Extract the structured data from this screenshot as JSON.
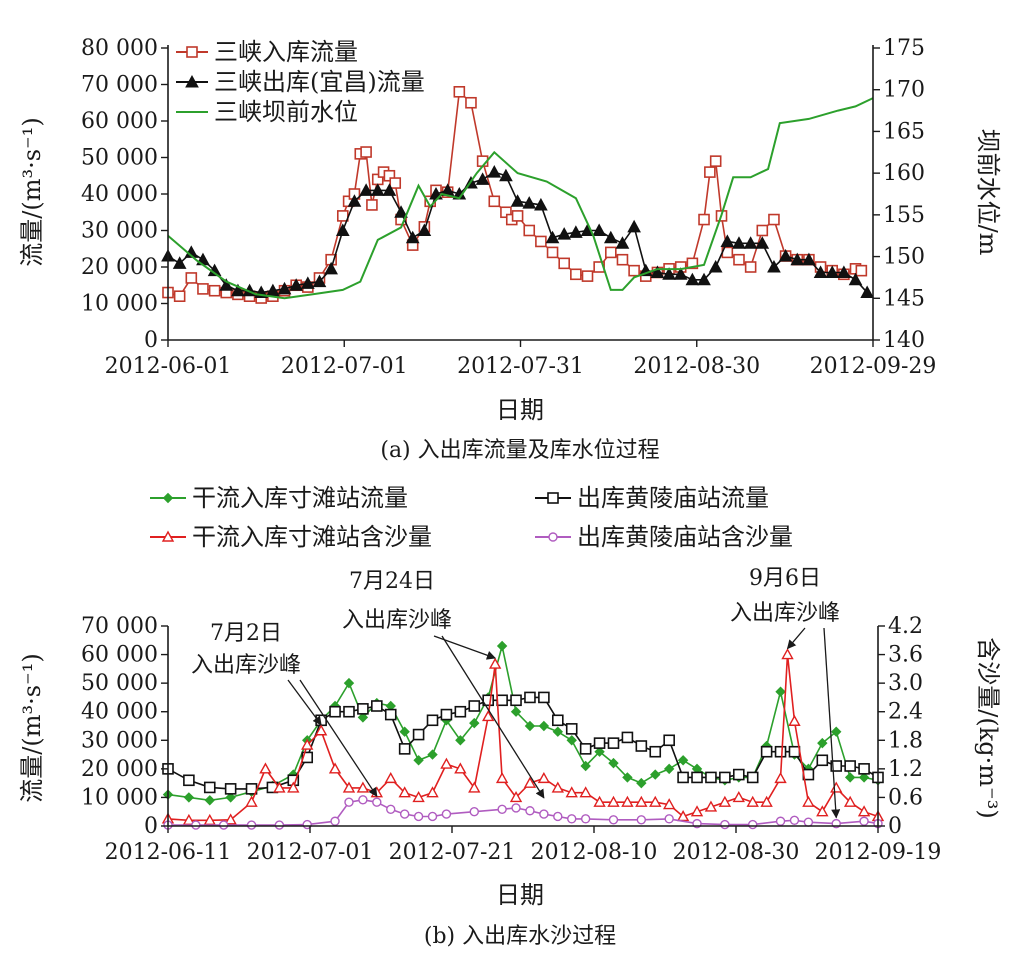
{
  "chart_data": [
    {
      "id": "a",
      "type": "line",
      "caption": "(a) 入出库流量及库水位过程",
      "xlabel": "日期",
      "ylabel": "流量/(m³·s⁻¹)",
      "ylabel_right": "坝前水位/m",
      "x_ticks": [
        "2012-06-01",
        "2012-07-01",
        "2012-07-31",
        "2012-08-30",
        "2012-09-29"
      ],
      "y_ticks": [
        "0",
        "10 000",
        "20 000",
        "30 000",
        "40 000",
        "50 000",
        "60 000",
        "70 000",
        "80 000"
      ],
      "y2_ticks": [
        "140",
        "145",
        "150",
        "155",
        "160",
        "165",
        "170",
        "175"
      ],
      "xlim": [
        0,
        121
      ],
      "ylim": [
        0,
        80000
      ],
      "y2lim": [
        140,
        175
      ],
      "x_unit": "days since 2012-06-01",
      "legend_position": "top-left",
      "series": [
        {
          "name": "三峡入库流量",
          "axis": "left",
          "color": "#c0392b",
          "marker": "square-open",
          "x": [
            0,
            2,
            4,
            6,
            8,
            10,
            12,
            14,
            16,
            18,
            20,
            22,
            24,
            26,
            28,
            30,
            31,
            32,
            33,
            34,
            35,
            36,
            37,
            38,
            39,
            40,
            42,
            44,
            45,
            46,
            48,
            50,
            52,
            54,
            56,
            58,
            59,
            60,
            62,
            64,
            66,
            68,
            70,
            72,
            74,
            76,
            78,
            80,
            82,
            84,
            86,
            88,
            90,
            92,
            93,
            94,
            95,
            96,
            98,
            100,
            102,
            104,
            106,
            108,
            110,
            112,
            114,
            116,
            118,
            119
          ],
          "y": [
            13000,
            12000,
            17000,
            14000,
            13500,
            13000,
            12500,
            12000,
            11500,
            12000,
            13500,
            15000,
            14500,
            17000,
            22000,
            34000,
            38000,
            40000,
            51000,
            51500,
            37000,
            44000,
            46000,
            45000,
            43000,
            33000,
            26000,
            31000,
            38000,
            41000,
            40500,
            68000,
            65000,
            49000,
            38000,
            35000,
            33000,
            34000,
            30000,
            27000,
            24000,
            21000,
            18000,
            17500,
            20000,
            24000,
            22000,
            19000,
            17500,
            18500,
            19500,
            20000,
            21000,
            33000,
            46000,
            49000,
            34000,
            24000,
            22000,
            20000,
            30000,
            33000,
            23000,
            22000,
            22000,
            20000,
            19000,
            18000,
            19500,
            19000
          ]
        },
        {
          "name": "三峡出库(宜昌)流量",
          "axis": "left",
          "color": "#111111",
          "marker": "triangle-filled",
          "x": [
            0,
            2,
            4,
            6,
            8,
            10,
            12,
            14,
            16,
            18,
            20,
            22,
            24,
            26,
            28,
            30,
            32,
            34,
            36,
            38,
            40,
            42,
            44,
            46,
            48,
            50,
            52,
            54,
            56,
            58,
            60,
            62,
            64,
            66,
            68,
            70,
            72,
            74,
            76,
            78,
            80,
            82,
            84,
            86,
            88,
            90,
            92,
            94,
            96,
            98,
            100,
            102,
            104,
            106,
            108,
            110,
            112,
            114,
            116,
            118,
            120
          ],
          "y": [
            23000,
            21000,
            24000,
            22000,
            19000,
            15000,
            13500,
            13500,
            13000,
            13500,
            14000,
            15000,
            15500,
            16000,
            19500,
            30000,
            38000,
            41000,
            41000,
            41000,
            35000,
            28000,
            30000,
            40000,
            41000,
            40000,
            43000,
            44000,
            46000,
            45000,
            38000,
            37500,
            37000,
            28000,
            29000,
            29500,
            30000,
            30000,
            28000,
            26500,
            31000,
            19000,
            18500,
            18000,
            18000,
            16500,
            16500,
            20000,
            27000,
            26500,
            26500,
            26500,
            20000,
            23000,
            22000,
            22000,
            18500,
            18500,
            18500,
            16500,
            13000
          ]
        },
        {
          "name": "三峡坝前水位",
          "axis": "right",
          "color": "#2ca02c",
          "marker": "none",
          "x": [
            0,
            5,
            10,
            15,
            20,
            25,
            30,
            33,
            36,
            40,
            43,
            45,
            47,
            50,
            53,
            56,
            60,
            65,
            70,
            73,
            76,
            78,
            80,
            84,
            88,
            92,
            95,
            97,
            100,
            103,
            105,
            110,
            115,
            118,
            121
          ],
          "y": [
            152.5,
            149.5,
            147,
            145.5,
            145,
            145.5,
            146,
            147,
            152,
            153.5,
            158.5,
            156,
            157.5,
            157,
            160,
            162.5,
            160,
            159,
            157,
            152.5,
            146,
            146,
            147.5,
            148.5,
            148.5,
            149,
            155,
            159.5,
            159.5,
            160.5,
            166,
            166.5,
            167.5,
            168,
            169
          ]
        }
      ]
    },
    {
      "id": "b",
      "type": "line",
      "caption": "(b) 入出库水沙过程",
      "xlabel": "日期",
      "ylabel": "流量/(m³·s⁻¹)",
      "ylabel_right": "含沙量/(kg·m⁻³)",
      "x_ticks": [
        "2012-06-11",
        "2012-07-01",
        "2012-07-21",
        "2012-08-10",
        "2012-08-30",
        "2012-09-19"
      ],
      "y_ticks": [
        "0",
        "10 000",
        "20 000",
        "30 000",
        "40 000",
        "50 000",
        "60 000",
        "70 000"
      ],
      "y2_ticks": [
        "0",
        "0.6",
        "1.2",
        "1.8",
        "2.4",
        "3.0",
        "3.6",
        "4.2"
      ],
      "xlim": [
        0,
        102
      ],
      "ylim": [
        0,
        70000
      ],
      "y2lim": [
        0,
        4.2
      ],
      "x_unit": "days since 2012-06-11",
      "legend_position": "top",
      "annotations": [
        {
          "line1": "7月2日",
          "line2": "入出库沙峰"
        },
        {
          "line1": "7月24日",
          "line2": "入出库沙峰"
        },
        {
          "line1": "9月6日",
          "line2": "入出库沙峰"
        }
      ],
      "series": [
        {
          "name": "干流入库寸滩站流量",
          "axis": "left",
          "color": "#2ca02c",
          "marker": "diamond-filled",
          "x": [
            0,
            3,
            6,
            9,
            12,
            15,
            18,
            20,
            22,
            24,
            26,
            28,
            30,
            32,
            34,
            36,
            38,
            40,
            42,
            44,
            46,
            48,
            50,
            52,
            54,
            56,
            58,
            60,
            62,
            64,
            66,
            68,
            70,
            72,
            74,
            76,
            78,
            80,
            82,
            84,
            86,
            88,
            90,
            92,
            94,
            96,
            98,
            100,
            102
          ],
          "y": [
            11000,
            10000,
            9000,
            10000,
            12000,
            14000,
            18000,
            30000,
            37000,
            42000,
            50000,
            38000,
            43000,
            42000,
            33000,
            23000,
            25000,
            37000,
            30000,
            36000,
            45000,
            63000,
            40000,
            35000,
            35000,
            33000,
            30000,
            21000,
            26000,
            22000,
            17000,
            15000,
            18000,
            20000,
            23000,
            20000,
            17000,
            16000,
            17000,
            17000,
            28000,
            47000,
            25000,
            20000,
            29000,
            33000,
            17000,
            17000,
            16000
          ]
        },
        {
          "name": "出库黄陵庙站流量",
          "axis": "left",
          "color": "#111111",
          "marker": "square-open",
          "x": [
            0,
            3,
            6,
            9,
            12,
            15,
            18,
            20,
            22,
            24,
            26,
            28,
            30,
            32,
            34,
            36,
            38,
            40,
            42,
            44,
            46,
            48,
            50,
            52,
            54,
            56,
            58,
            60,
            62,
            64,
            66,
            68,
            70,
            72,
            74,
            76,
            78,
            80,
            82,
            84,
            86,
            88,
            90,
            92,
            94,
            96,
            98,
            100,
            102
          ],
          "y": [
            20000,
            16000,
            13500,
            13000,
            13000,
            13500,
            16000,
            24000,
            37000,
            40000,
            40000,
            41000,
            42000,
            39000,
            27000,
            32000,
            37000,
            39000,
            40000,
            42000,
            44000,
            44000,
            44000,
            45000,
            45000,
            37000,
            34000,
            27000,
            29000,
            29000,
            31000,
            28000,
            26000,
            30000,
            17000,
            17000,
            17000,
            17000,
            18000,
            17000,
            26000,
            26000,
            26000,
            18000,
            23000,
            21000,
            21000,
            20000,
            17000
          ]
        },
        {
          "name": "干流入库寸滩站含沙量",
          "axis": "right",
          "color": "#e02020",
          "marker": "triangle-open",
          "x": [
            0,
            3,
            6,
            9,
            12,
            14,
            16,
            18,
            20,
            22,
            24,
            26,
            28,
            30,
            32,
            34,
            36,
            38,
            40,
            42,
            44,
            46,
            47,
            48,
            50,
            52,
            54,
            56,
            58,
            60,
            62,
            64,
            66,
            68,
            70,
            72,
            74,
            76,
            78,
            80,
            82,
            84,
            86,
            88,
            89,
            90,
            92,
            94,
            96,
            98,
            100,
            102
          ],
          "y": [
            0.15,
            0.12,
            0.12,
            0.13,
            0.5,
            1.2,
            0.8,
            0.8,
            1.7,
            2.0,
            1.2,
            0.8,
            0.8,
            0.7,
            1.0,
            0.7,
            0.6,
            0.7,
            1.3,
            1.2,
            0.8,
            2.3,
            3.4,
            1.0,
            0.6,
            0.9,
            1.0,
            0.8,
            0.7,
            0.7,
            0.5,
            0.5,
            0.5,
            0.5,
            0.5,
            0.45,
            0.2,
            0.3,
            0.4,
            0.5,
            0.6,
            0.5,
            0.5,
            1.0,
            3.6,
            2.2,
            0.5,
            0.3,
            0.8,
            0.5,
            0.3,
            0.2
          ]
        },
        {
          "name": "出库黄陵庙站含沙量",
          "axis": "right",
          "color": "#b05cc0",
          "marker": "circle-open",
          "x": [
            0,
            4,
            8,
            12,
            16,
            20,
            24,
            26,
            28,
            30,
            32,
            34,
            36,
            38,
            40,
            44,
            48,
            50,
            52,
            54,
            56,
            58,
            60,
            64,
            68,
            72,
            76,
            80,
            84,
            88,
            90,
            92,
            96,
            100,
            102
          ],
          "y": [
            0.02,
            0.02,
            0.02,
            0.02,
            0.02,
            0.03,
            0.1,
            0.5,
            0.55,
            0.5,
            0.35,
            0.25,
            0.2,
            0.2,
            0.25,
            0.3,
            0.35,
            0.38,
            0.32,
            0.25,
            0.2,
            0.15,
            0.15,
            0.13,
            0.13,
            0.15,
            0.05,
            0.03,
            0.03,
            0.1,
            0.12,
            0.08,
            0.05,
            0.1,
            0.05
          ]
        }
      ]
    }
  ]
}
